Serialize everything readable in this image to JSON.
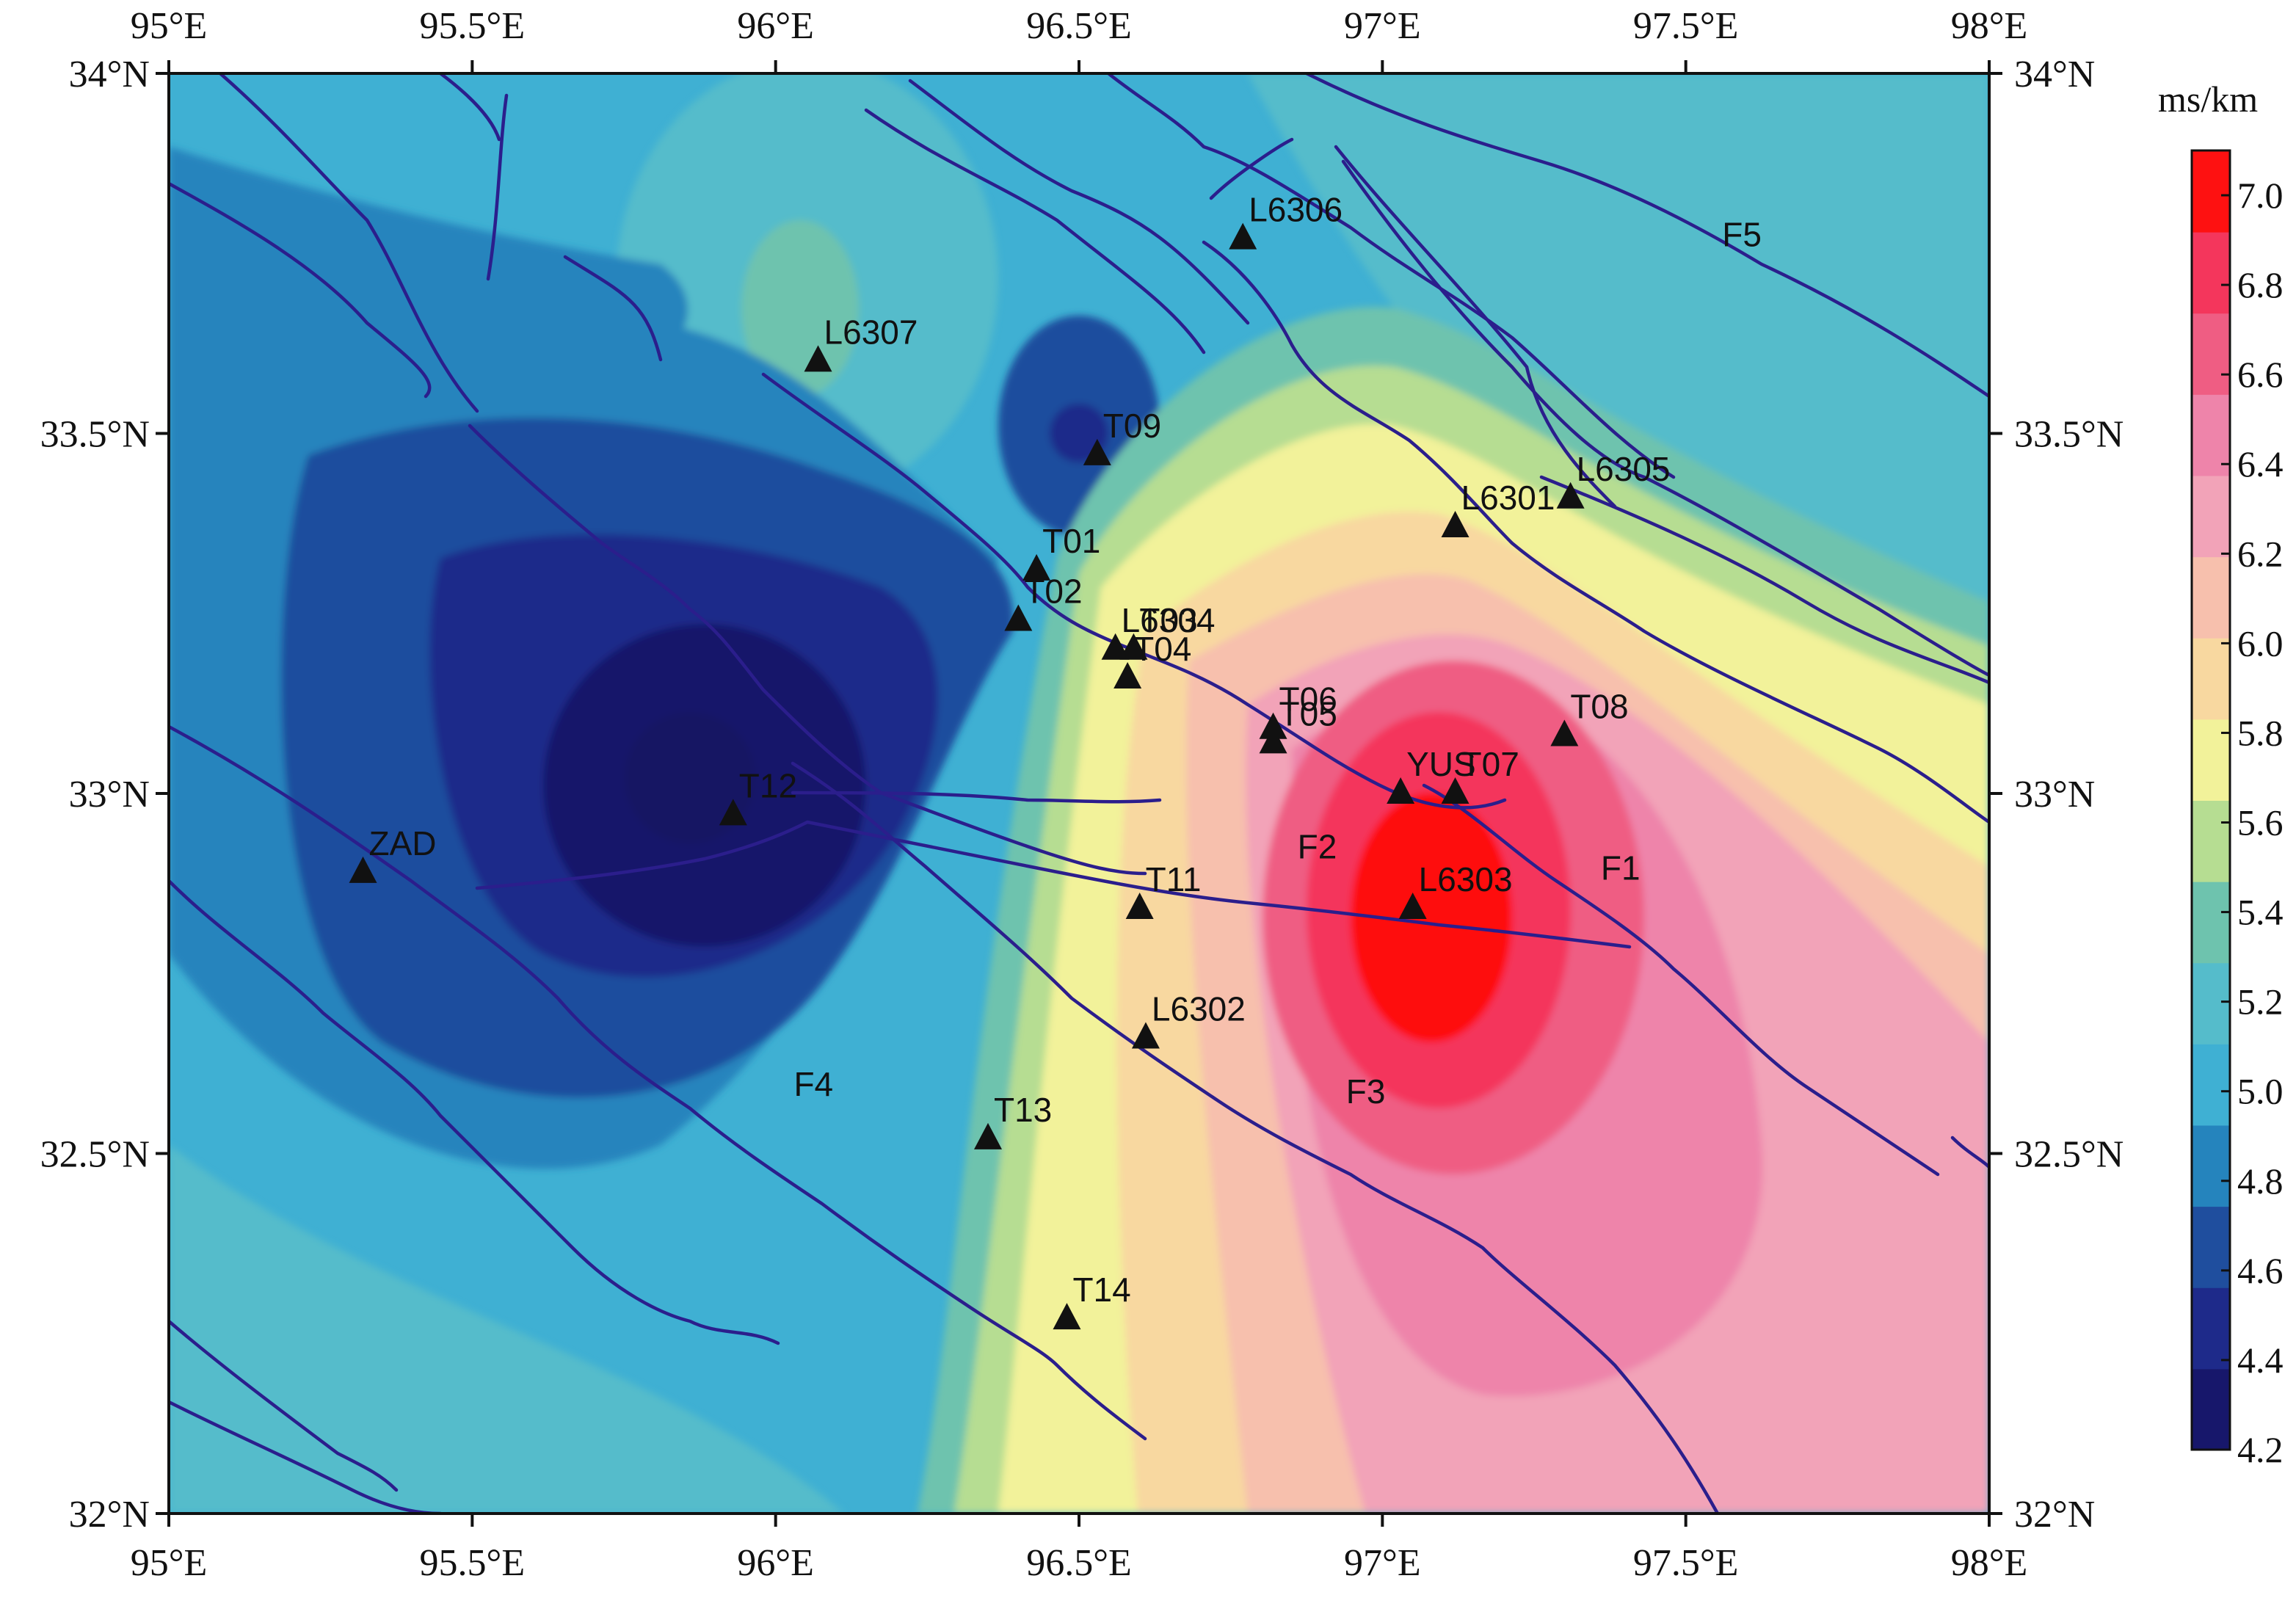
{
  "map": {
    "lon_ticks": [
      "95°E",
      "95.5°E",
      "96°E",
      "96.5°E",
      "97°E",
      "97.5°E",
      "98°E"
    ],
    "lat_ticks": [
      "34°N",
      "33.5°N",
      "33°N",
      "32.5°N",
      "32°N"
    ],
    "lon_range": [
      95,
      98
    ],
    "lat_range": [
      32,
      34
    ],
    "colorbar": {
      "unit": "ms/km",
      "ticks": [
        "7.0",
        "6.8",
        "6.6",
        "6.4",
        "6.2",
        "6.0",
        "5.8",
        "5.6",
        "5.4",
        "5.2",
        "5.0",
        "4.8",
        "4.6",
        "4.4",
        "4.2"
      ],
      "range": [
        4.2,
        7.1
      ],
      "colors": [
        "#17176b",
        "#1e2a8a",
        "#1f4e9e",
        "#2584bd",
        "#3fb0d3",
        "#55bccb",
        "#6ec3ae",
        "#b6dd92",
        "#f2f29a",
        "#f8d8a0",
        "#f7c0ad",
        "#f2a3b8",
        "#ee84aa",
        "#ef5d83",
        "#f4365c",
        "#fe1111"
      ]
    },
    "stations": [
      {
        "name": "L6306",
        "lon": 96.77,
        "lat": 33.77
      },
      {
        "name": "L6307",
        "lon": 96.07,
        "lat": 33.6
      },
      {
        "name": "T09",
        "lon": 96.53,
        "lat": 33.47
      },
      {
        "name": "L6305",
        "lon": 97.31,
        "lat": 33.41
      },
      {
        "name": "L6301",
        "lon": 97.12,
        "lat": 33.37
      },
      {
        "name": "T01",
        "lon": 96.43,
        "lat": 33.31
      },
      {
        "name": "T02",
        "lon": 96.4,
        "lat": 33.24
      },
      {
        "name": "L6304",
        "lon": 96.56,
        "lat": 33.2
      },
      {
        "name": "T03",
        "lon": 96.59,
        "lat": 33.2
      },
      {
        "name": "T04",
        "lon": 96.58,
        "lat": 33.16
      },
      {
        "name": "T06",
        "lon": 96.82,
        "lat": 33.09
      },
      {
        "name": "T05",
        "lon": 96.82,
        "lat": 33.07
      },
      {
        "name": "T08",
        "lon": 97.3,
        "lat": 33.08
      },
      {
        "name": "YUS",
        "lon": 97.03,
        "lat": 33.0
      },
      {
        "name": "T07",
        "lon": 97.12,
        "lat": 33.0
      },
      {
        "name": "T12",
        "lon": 95.93,
        "lat": 32.97
      },
      {
        "name": "ZAD",
        "lon": 95.32,
        "lat": 32.89
      },
      {
        "name": "T11",
        "lon": 96.6,
        "lat": 32.84
      },
      {
        "name": "L6303",
        "lon": 97.05,
        "lat": 32.84
      },
      {
        "name": "L6302",
        "lon": 96.61,
        "lat": 32.66
      },
      {
        "name": "T13",
        "lon": 96.35,
        "lat": 32.52
      },
      {
        "name": "T14",
        "lon": 96.48,
        "lat": 32.27
      }
    ],
    "fault_labels": [
      {
        "name": "F1",
        "lon": 97.36,
        "lat": 32.88
      },
      {
        "name": "F2",
        "lon": 96.86,
        "lat": 32.91
      },
      {
        "name": "F3",
        "lon": 96.94,
        "lat": 32.57
      },
      {
        "name": "F4",
        "lon": 96.03,
        "lat": 32.58
      },
      {
        "name": "F5",
        "lon": 97.56,
        "lat": 33.76
      }
    ]
  }
}
